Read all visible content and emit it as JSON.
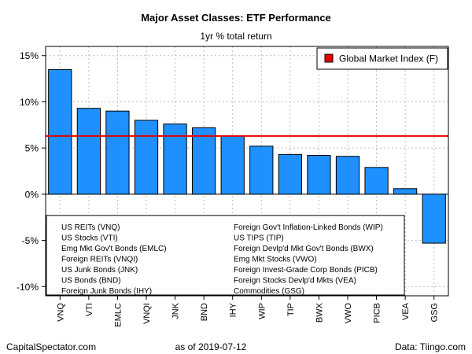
{
  "chart_data": {
    "type": "bar",
    "title": "Major Asset Classes: ETF Performance",
    "subtitle": "1yr % total return",
    "categories": [
      "VNQ",
      "VTI",
      "EMLC",
      "VNQI",
      "JNK",
      "BND",
      "IHY",
      "WIP",
      "TIP",
      "BWX",
      "VWO",
      "PICB",
      "VEA",
      "GSG"
    ],
    "values": [
      13.5,
      9.3,
      9.0,
      8.0,
      7.6,
      7.2,
      6.3,
      5.2,
      4.3,
      4.2,
      4.1,
      2.9,
      0.6,
      -5.3
    ],
    "reference_line": {
      "label": "Global Market Index (F)",
      "value": 6.3,
      "color": "#e60000"
    },
    "ylim": [
      -11,
      16
    ],
    "yticks": [
      15,
      10,
      5,
      0,
      -5,
      -10
    ],
    "ytick_labels": [
      "15%",
      "10%",
      "5%",
      "0%",
      "-5%",
      "-10%"
    ],
    "bar_color": "#1e90ff",
    "grid": true,
    "legend_position": "top-right",
    "key_left": [
      "US REITs (VNQ)",
      "US Stocks (VTI)",
      "Emg Mkt Gov't Bonds (EMLC)",
      "Foreign REITs (VNQI)",
      "US Junk Bonds (JNK)",
      "US Bonds (BND)",
      "Foreign Junk Bonds (IHY)"
    ],
    "key_right": [
      "Foreign Gov't Inflation-Linked Bonds (WIP)",
      "US TIPS (TIP)",
      "Foreign Devlp'd Mkt Gov't Bonds (BWX)",
      "Emg Mkt Stocks (VWO)",
      "Foreign Invest-Grade Corp Bonds (PICB)",
      "Foreign Stocks Devlp'd Mkts (VEA)",
      "Commodities (GSG)"
    ]
  },
  "footer": {
    "left": "CapitalSpectator.com",
    "center": "as of   2019-07-12",
    "right": "Data: Tiingo.com"
  }
}
